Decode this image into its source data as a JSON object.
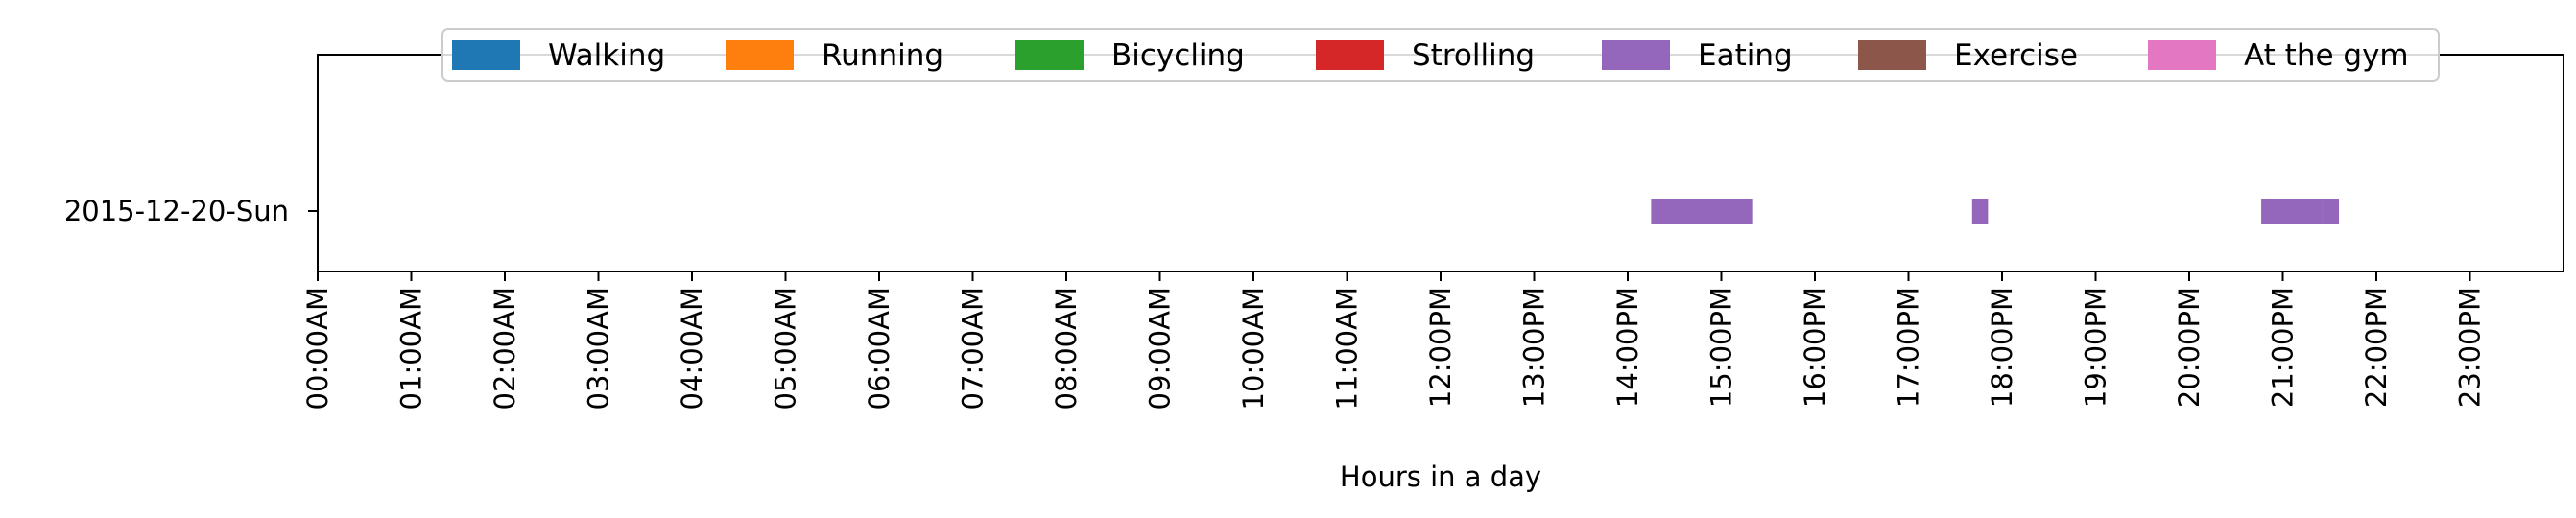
{
  "chart_data": {
    "type": "bar",
    "orientation": "horizontal",
    "title": "",
    "xlabel": "Hours in a day",
    "ylabel": "",
    "xlim": [
      0,
      24
    ],
    "x_ticks": [
      0,
      1,
      2,
      3,
      4,
      5,
      6,
      7,
      8,
      9,
      10,
      11,
      12,
      13,
      14,
      15,
      16,
      17,
      18,
      19,
      20,
      21,
      22,
      23
    ],
    "x_tick_labels": [
      "00:00AM",
      "01:00AM",
      "02:00AM",
      "03:00AM",
      "04:00AM",
      "05:00AM",
      "06:00AM",
      "07:00AM",
      "08:00AM",
      "09:00AM",
      "10:00AM",
      "11:00AM",
      "12:00PM",
      "13:00PM",
      "14:00PM",
      "15:00PM",
      "16:00PM",
      "17:00PM",
      "18:00PM",
      "19:00PM",
      "20:00PM",
      "21:00PM",
      "22:00PM",
      "23:00PM"
    ],
    "categories": [
      "2015-12-20-Sun"
    ],
    "legend_position": "top-center",
    "grid": false,
    "series": [
      {
        "name": "Walking",
        "color": "#1f77b4",
        "intervals": []
      },
      {
        "name": "Running",
        "color": "#ff7f0e",
        "intervals": []
      },
      {
        "name": "Bicycling",
        "color": "#2ca02c",
        "intervals": []
      },
      {
        "name": "Strolling",
        "color": "#d62728",
        "intervals": []
      },
      {
        "name": "Eating",
        "color": "#9467bd",
        "intervals": [
          {
            "category": "2015-12-20-Sun",
            "start": 14.25,
            "end": 15.33
          },
          {
            "category": "2015-12-20-Sun",
            "start": 17.68,
            "end": 17.85
          },
          {
            "category": "2015-12-20-Sun",
            "start": 20.77,
            "end": 21.42
          },
          {
            "category": "2015-12-20-Sun",
            "start": 21.42,
            "end": 21.6
          }
        ]
      },
      {
        "name": "Exercise",
        "color": "#8c564b",
        "intervals": []
      },
      {
        "name": "At the gym",
        "color": "#e377c2",
        "intervals": []
      }
    ]
  }
}
